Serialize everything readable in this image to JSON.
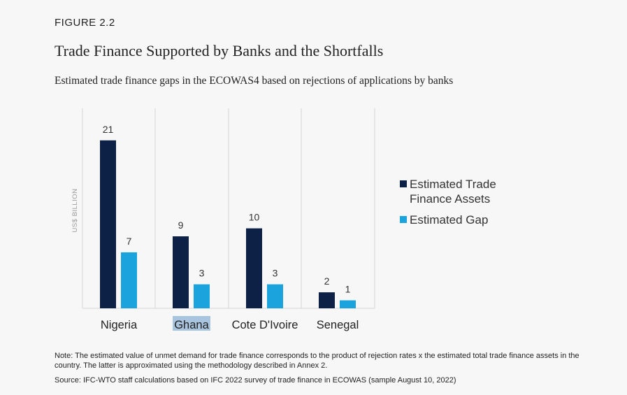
{
  "figure_label": "FIGURE 2.2",
  "title": "Trade Finance Supported by Banks and the Shortfalls",
  "subtitle": "Estimated trade finance gaps in the ECOWAS4 based on rejections of applications by banks",
  "note": "Note: The estimated value of unmet demand for trade finance corresponds to the product of rejection rates x the estimated total trade finance assets in the country. The latter is approximated using the methodology described in Annex 2.",
  "source": "Source:  IFC-WTO staff calculations based on IFC 2022 survey of trade finance in ECOWAS (sample August 10, 2022)",
  "chart_data": {
    "type": "bar",
    "categories": [
      "Nigeria",
      "Ghana",
      "Cote D'Ivoire",
      "Senegal"
    ],
    "series": [
      {
        "name": "Estimated Trade Finance Assets",
        "values": [
          21,
          9,
          10,
          2
        ],
        "color": "#0c2145"
      },
      {
        "name": "Estimated Gap",
        "values": [
          7,
          3,
          3,
          1
        ],
        "color": "#1aa3dd"
      }
    ],
    "value_labels": [
      [
        "21",
        "9",
        "10",
        "2"
      ],
      [
        "7",
        "3",
        "3",
        "1"
      ]
    ],
    "ylabel": "US$ BILLION",
    "xlabel": "",
    "ylim": [
      0,
      25
    ],
    "grid": "vertical separators",
    "legend_position": "right",
    "highlighted_category": "Ghana",
    "highlight_color": "#a9c4df"
  }
}
